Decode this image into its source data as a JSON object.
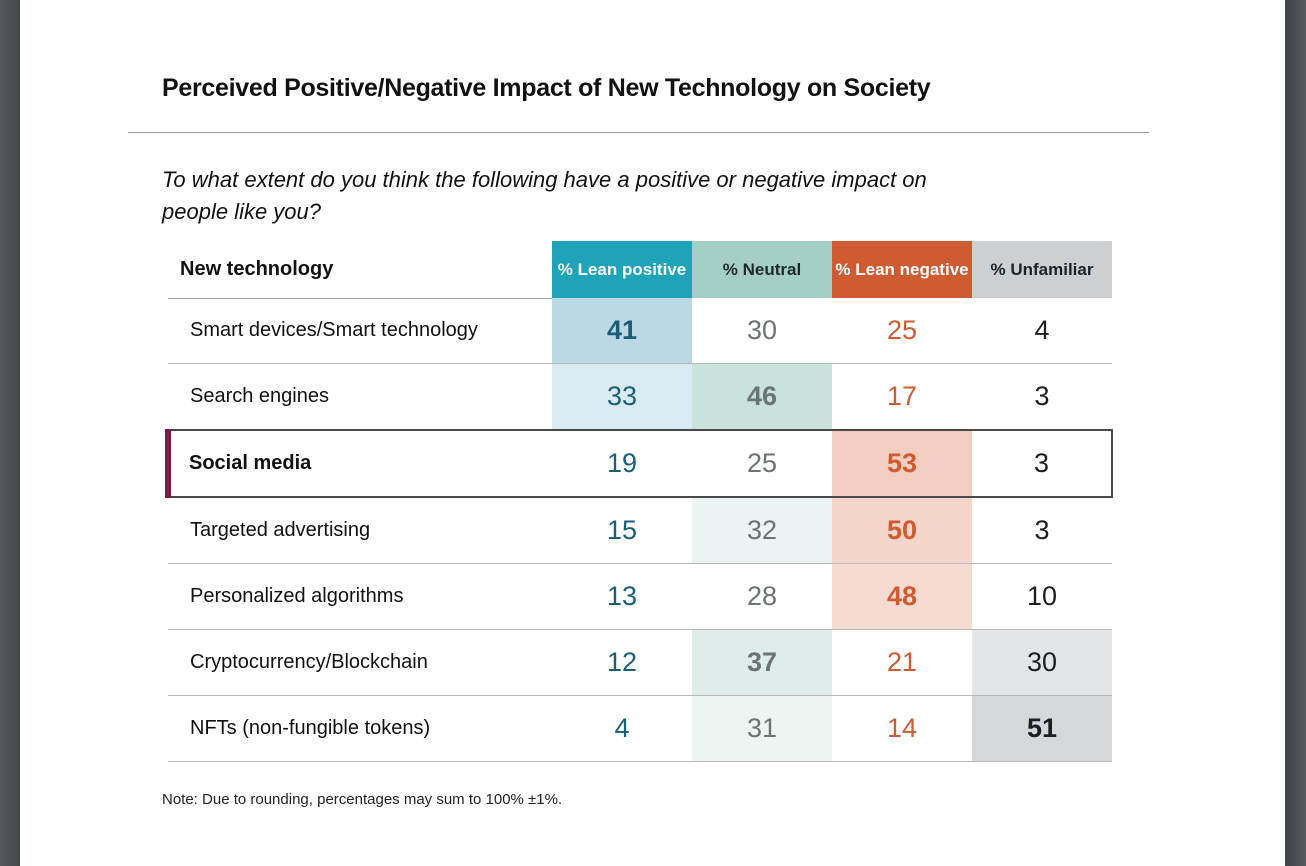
{
  "document": {
    "title": "Perceived Positive/Negative Impact of New Technology on Society",
    "question": "To what extent do you think the following have a positive or negative impact on people like you?",
    "note": "Note: Due to rounding, percentages may sum to 100% ±1%."
  },
  "colors": {
    "lean_positive": "#1fa3b8",
    "neutral": "#a5cfc6",
    "lean_negative": "#cf5b33",
    "unfamiliar": "#cdd0d3",
    "highlight_bar": "#7e1846"
  },
  "chart_data": {
    "type": "table",
    "title": "Perceived Positive/Negative Impact of New Technology on Society",
    "subtitle": "To what extent do you think the following have a positive or negative impact on people like you?",
    "columns": [
      "New technology",
      "% Lean positive",
      "% Neutral",
      "% Lean negative",
      "% Unfamiliar"
    ],
    "rows": [
      {
        "technology": "Smart devices/Smart technology",
        "lean_positive": 41,
        "neutral": 30,
        "lean_negative": 25,
        "unfamiliar": 4,
        "highlighted": false
      },
      {
        "technology": "Search engines",
        "lean_positive": 33,
        "neutral": 46,
        "lean_negative": 17,
        "unfamiliar": 3,
        "highlighted": false
      },
      {
        "technology": "Social media",
        "lean_positive": 19,
        "neutral": 25,
        "lean_negative": 53,
        "unfamiliar": 3,
        "highlighted": true
      },
      {
        "technology": "Targeted advertising",
        "lean_positive": 15,
        "neutral": 32,
        "lean_negative": 50,
        "unfamiliar": 3,
        "highlighted": false
      },
      {
        "technology": "Personalized algorithms",
        "lean_positive": 13,
        "neutral": 28,
        "lean_negative": 48,
        "unfamiliar": 10,
        "highlighted": false
      },
      {
        "technology": "Cryptocurrency/Blockchain",
        "lean_positive": 12,
        "neutral": 37,
        "lean_negative": 21,
        "unfamiliar": 30,
        "highlighted": false
      },
      {
        "technology": "NFTs (non-fungible tokens)",
        "lean_positive": 4,
        "neutral": 31,
        "lean_negative": 14,
        "unfamiliar": 51,
        "highlighted": false
      }
    ],
    "note": "Note: Due to rounding, percentages may sum to 100% ±1%."
  },
  "table": {
    "headers": {
      "technology": "New technology",
      "lean_positive": "% Lean positive",
      "neutral": "% Neutral",
      "lean_negative": "% Lean negative",
      "unfamiliar": "% Unfamiliar"
    }
  }
}
